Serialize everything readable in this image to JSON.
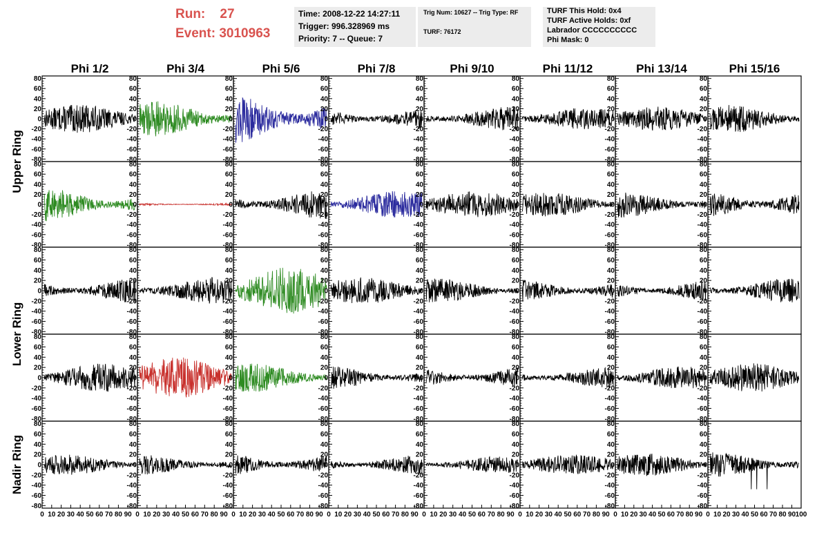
{
  "header": {
    "run_label": "Run:",
    "run_value": "27",
    "event_label": "Event:",
    "event_value": "3010963",
    "time": "Time: 2008-12-22 14:27:11",
    "trigger": "Trigger: 996.328969 ms",
    "priority": "Priority: 7 -- Queue: 7",
    "trig_num": "Trig Num: 10627 -- Trig Type: RF",
    "turf": "TURF: 76172",
    "turf_this_hold": "TURF This Hold: 0x4",
    "turf_active_holds": "TURF Active Holds: 0xf",
    "labrador": "Labrador CCCCCCCCCC",
    "phi_mask": "Phi Mask: 0"
  },
  "chart_data": {
    "type": "line",
    "columns": [
      "Phi 1/2",
      "Phi 3/4",
      "Phi 5/6",
      "Phi 7/8",
      "Phi 9/10",
      "Phi 11/12",
      "Phi 13/14",
      "Phi 15/16"
    ],
    "rows": [
      "Upper Ring",
      "Lower Ring",
      "Nadir Ring"
    ],
    "row_label_spans": [
      [
        0,
        1
      ],
      [
        2,
        3
      ],
      [
        4,
        4
      ]
    ],
    "ylim": [
      -85,
      85
    ],
    "xlim": [
      0,
      100
    ],
    "y_ticks": [
      -80,
      -60,
      -40,
      -20,
      0,
      20,
      40,
      60,
      80
    ],
    "x_ticks": [
      0,
      10,
      20,
      30,
      40,
      50,
      60,
      70,
      80,
      90,
      100
    ],
    "sample_count": 260,
    "colors": {
      "black": "#000000",
      "green": "#2e8b22",
      "blue": "#2b2b9e",
      "red": "#c8302c"
    },
    "panels": [
      {
        "color": "black",
        "amp": 14,
        "spike": 0
      },
      {
        "color": "green",
        "amp": 18,
        "spike": 0
      },
      {
        "color": "blue",
        "amp": 26,
        "spike": 0
      },
      {
        "color": "black",
        "amp": 12,
        "spike": 0
      },
      {
        "color": "black",
        "amp": 12,
        "spike": 1
      },
      {
        "color": "black",
        "amp": 11,
        "spike": 0
      },
      {
        "color": "black",
        "amp": 12,
        "spike": 1
      },
      {
        "color": "black",
        "amp": 14,
        "spike": 0
      },
      {
        "color": "green",
        "amp": 17,
        "spike": 0
      },
      {
        "color": "red",
        "amp": 1.5,
        "spike": 0
      },
      {
        "color": "black",
        "amp": 15,
        "spike": 0
      },
      {
        "color": "blue",
        "amp": 14,
        "spike": 0
      },
      {
        "color": "black",
        "amp": 13,
        "spike": 0
      },
      {
        "color": "black",
        "amp": 12,
        "spike": 0
      },
      {
        "color": "black",
        "amp": 13,
        "spike": 0
      },
      {
        "color": "black",
        "amp": 16,
        "spike": 0
      },
      {
        "color": "black",
        "amp": 13,
        "spike": 0
      },
      {
        "color": "black",
        "amp": 13,
        "spike": 0
      },
      {
        "color": "green",
        "amp": 23,
        "spike": 0
      },
      {
        "color": "black",
        "amp": 13,
        "spike": 0
      },
      {
        "color": "black",
        "amp": 12,
        "spike": 0
      },
      {
        "color": "black",
        "amp": 12,
        "spike": 0
      },
      {
        "color": "black",
        "amp": 11,
        "spike": 0
      },
      {
        "color": "black",
        "amp": 12,
        "spike": 0
      },
      {
        "color": "black",
        "amp": 14,
        "spike": 0
      },
      {
        "color": "red",
        "amp": 20,
        "spike": 0
      },
      {
        "color": "green",
        "amp": 14,
        "spike": 0
      },
      {
        "color": "black",
        "amp": 12,
        "spike": 0
      },
      {
        "color": "black",
        "amp": 12,
        "spike": 0
      },
      {
        "color": "black",
        "amp": 10,
        "spike": 0
      },
      {
        "color": "black",
        "amp": 11,
        "spike": 0
      },
      {
        "color": "black",
        "amp": 14,
        "spike": 1
      },
      {
        "color": "black",
        "amp": 10,
        "spike": 0
      },
      {
        "color": "black",
        "amp": 10,
        "spike": 0
      },
      {
        "color": "black",
        "amp": 13,
        "spike": 0
      },
      {
        "color": "black",
        "amp": 10,
        "spike": 0
      },
      {
        "color": "black",
        "amp": 8,
        "spike": 0
      },
      {
        "color": "black",
        "amp": 10,
        "spike": 0
      },
      {
        "color": "black",
        "amp": 11,
        "spike": 0
      },
      {
        "color": "black",
        "amp": 12,
        "spike": 1
      }
    ]
  }
}
